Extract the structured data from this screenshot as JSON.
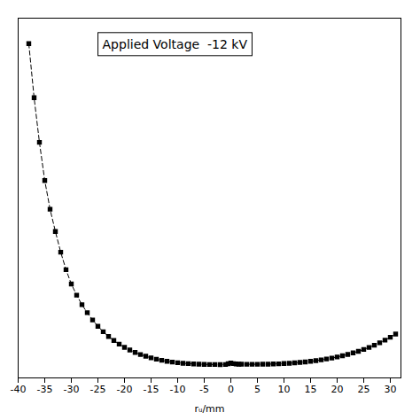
{
  "chart_data": {
    "type": "line",
    "xlabel": "rᵤ/mm",
    "annotation": "Applied Voltage  -12 kV",
    "x": [
      -38,
      -37,
      -36,
      -35,
      -34,
      -33,
      -32,
      -31,
      -30,
      -29,
      -28,
      -27,
      -26,
      -25,
      -24,
      -23,
      -22,
      -21,
      -20,
      -19,
      -18,
      -17,
      -16,
      -15,
      -14,
      -13,
      -12,
      -11,
      -10,
      -9,
      -8,
      -7,
      -6,
      -5,
      -4,
      -3,
      -2,
      -1,
      -0.5,
      0,
      0.5,
      1,
      1.5,
      2,
      3,
      4,
      5,
      6,
      7,
      8,
      9,
      10,
      11,
      12,
      13,
      14,
      15,
      16,
      17,
      18,
      19,
      20,
      21,
      22,
      23,
      24,
      25,
      26,
      27,
      28,
      29,
      30,
      31
    ],
    "values": [
      10.2,
      8.5,
      7.1,
      5.9,
      5.0,
      4.3,
      3.65,
      3.1,
      2.65,
      2.3,
      2.0,
      1.75,
      1.52,
      1.32,
      1.15,
      1.0,
      0.875,
      0.76,
      0.66,
      0.575,
      0.5,
      0.435,
      0.38,
      0.33,
      0.288,
      0.252,
      0.222,
      0.198,
      0.178,
      0.161,
      0.148,
      0.138,
      0.13,
      0.125,
      0.122,
      0.12,
      0.119,
      0.122,
      0.145,
      0.168,
      0.148,
      0.138,
      0.132,
      0.13,
      0.128,
      0.127,
      0.128,
      0.13,
      0.133,
      0.137,
      0.143,
      0.151,
      0.161,
      0.173,
      0.187,
      0.203,
      0.222,
      0.243,
      0.267,
      0.294,
      0.324,
      0.358,
      0.396,
      0.438,
      0.485,
      0.537,
      0.595,
      0.658,
      0.727,
      0.803,
      0.886,
      0.977,
      1.076
    ],
    "color": "#000000",
    "marker": "square",
    "line_style": "dashed",
    "xlim": [
      -40,
      32
    ],
    "ylim": [
      -0.3,
      11.0
    ],
    "xticks": [
      -40,
      -35,
      -30,
      -25,
      -20,
      -15,
      -10,
      -5,
      0,
      5,
      10,
      15,
      20,
      25,
      30
    ],
    "tick_labels": "x"
  }
}
